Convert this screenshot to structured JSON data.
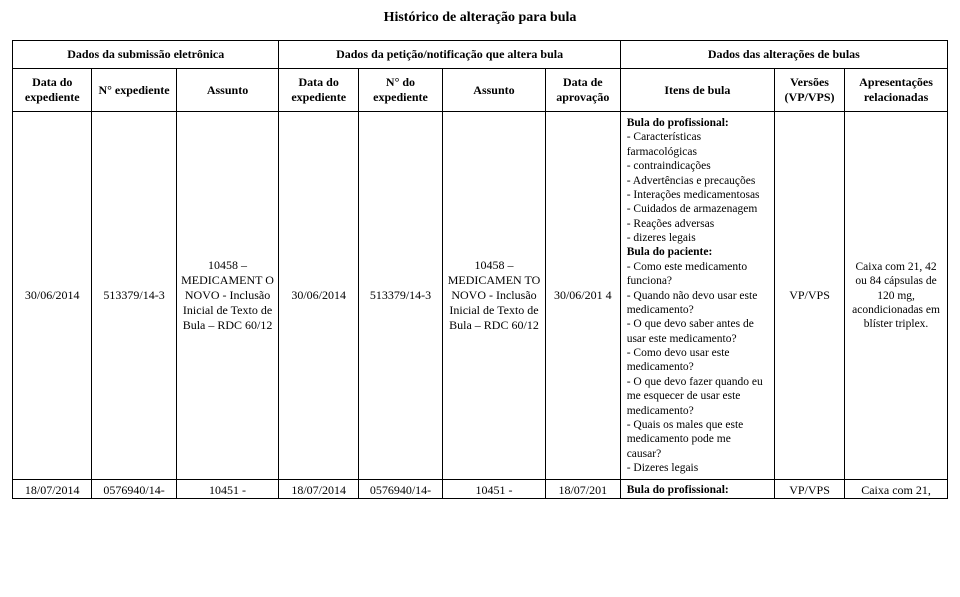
{
  "doc_title": "Histórico de alteração para bula",
  "section_headers": {
    "submission": "Dados da submissão eletrônica",
    "petition": "Dados da petição/notificação que altera bula",
    "alterations": "Dados das alterações de bulas"
  },
  "columns": {
    "sub_data": "Data do expediente",
    "sub_n": "N° expediente",
    "sub_assunto": "Assunto",
    "pet_data": "Data do expediente",
    "pet_n": "N° do expediente",
    "pet_assunto": "Assunto",
    "pet_aprov": "Data de aprovação",
    "alt_itens": "Itens de bula",
    "alt_versoes": "Versões (VP/VPS)",
    "alt_apres": "Apresentações relacionadas"
  },
  "row1": {
    "sub_data": "30/06/2014",
    "sub_n": "513379/14-3",
    "sub_assunto": "10458 – MEDICAMENT O NOVO - Inclusão Inicial de Texto de Bula – RDC 60/12",
    "pet_data": "30/06/2014",
    "pet_n": "513379/14-3",
    "pet_assunto": "10458 – MEDICAMEN TO NOVO - Inclusão Inicial de Texto de Bula – RDC 60/12",
    "pet_aprov": "30/06/201 4",
    "itens": {
      "prof_title": "Bula do profissional:",
      "prof_items": [
        "- Características farmacológicas",
        "- contraindicações",
        "- Advertências e precauções",
        "- Interações medicamentosas",
        "- Cuidados de armazenagem",
        "- Reações adversas",
        "- dizeres legais"
      ],
      "pac_title": "Bula do paciente:",
      "pac_items": [
        "- Como este medicamento funciona?",
        "- Quando não devo usar este medicamento?",
        "- O que devo saber antes de usar este medicamento?",
        "- Como devo usar este medicamento?",
        "- O que devo fazer quando eu me esquecer de usar este medicamento?",
        "- Quais os males que este medicamento pode me causar?",
        "- Dizeres legais"
      ]
    },
    "versoes": "VP/VPS",
    "apres": "Caixa com 21, 42 ou 84 cápsulas de 120 mg, acondicionadas em blíster triplex."
  },
  "row2": {
    "sub_data": "18/07/2014",
    "sub_n": "0576940/14-",
    "sub_assunto": "10451 -",
    "pet_data": "18/07/2014",
    "pet_n": "0576940/14-",
    "pet_assunto": "10451 -",
    "pet_aprov": "18/07/201",
    "itens": "Bula do profissional:",
    "versoes": "VP/VPS",
    "apres": "Caixa com 21,"
  },
  "col_widths": {
    "c1": "8.5%",
    "c2": "9%",
    "c3": "11%",
    "c4": "8.5%",
    "c5": "9%",
    "c6": "11%",
    "c7": "8%",
    "c8": "16.5%",
    "c9": "7.5%",
    "c10": "11%"
  }
}
